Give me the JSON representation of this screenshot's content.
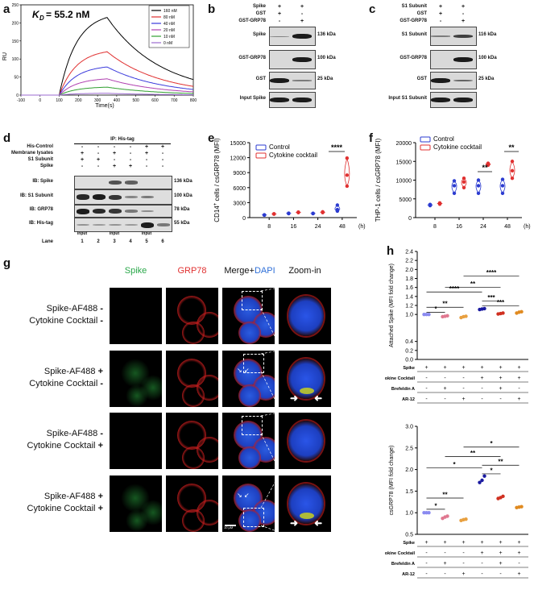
{
  "panel_labels": [
    "a",
    "b",
    "c",
    "d",
    "e",
    "f",
    "g",
    "h"
  ],
  "panel_a": {
    "kd_text": "= 55.2 nM",
    "kd_symbol": "K",
    "kd_sub": "D",
    "ylabel": "RU",
    "xlabel": "Time(s)",
    "x_ticks": [
      "-100",
      "0",
      "100",
      "200",
      "300",
      "400",
      "500",
      "600",
      "700",
      "800"
    ],
    "y_ticks": [
      "0",
      "50",
      "100",
      "150",
      "200",
      "250"
    ],
    "legend": [
      {
        "label": "160 nM",
        "color": "#000000"
      },
      {
        "label": "80 nM",
        "color": "#e03030"
      },
      {
        "label": "40 nM",
        "color": "#3a3adc"
      },
      {
        "label": "20 nM",
        "color": "#b040b0"
      },
      {
        "label": "10 nM",
        "color": "#30a030"
      },
      {
        "label": "0 nM",
        "color": "#9b6bd0"
      }
    ]
  },
  "panel_b": {
    "rows": [
      "Spike",
      "GST",
      "GST-GRP78"
    ],
    "signs": [
      [
        "+",
        "+"
      ],
      [
        "+",
        "-"
      ],
      [
        "-",
        "+"
      ]
    ],
    "blots": [
      "Spike",
      "GST-GRP78",
      "GST",
      "Input Spike"
    ],
    "sizes": [
      "136 kDa",
      "100 kDa",
      "25 kDa",
      ""
    ]
  },
  "panel_c": {
    "rows": [
      "S1 Subunit",
      "GST",
      "GST-GRP78"
    ],
    "signs": [
      [
        "+",
        "+"
      ],
      [
        "+",
        "-"
      ],
      [
        "-",
        "+"
      ]
    ],
    "blots": [
      "S1 Subunit",
      "GST-GRP78",
      "GST",
      "Input S1 Subunit"
    ],
    "sizes": [
      "116 kDa",
      "100 kDa",
      "25 kDa",
      ""
    ]
  },
  "panel_d": {
    "title": "IP: His-tag",
    "rows": [
      "His-Control",
      "Membrane lysates",
      "S1 Subunit",
      "Spike"
    ],
    "signs": [
      [
        "-",
        "-",
        "-",
        "-",
        "+",
        "+"
      ],
      [
        "+",
        "-",
        "+",
        "-",
        "+",
        "-"
      ],
      [
        "+",
        "+",
        "-",
        "-",
        "-",
        "-"
      ],
      [
        "-",
        "-",
        "+",
        "+",
        "-",
        "-"
      ]
    ],
    "input_labels": [
      "Input",
      "Input",
      "Input"
    ],
    "blots": [
      "IB: Spike",
      "IB: S1 Subunit",
      "IB: GRP78",
      "IB: His-tag"
    ],
    "sizes": [
      "136 kDa",
      "100 kDa",
      "78 kDa",
      "55 kDa"
    ],
    "lane_label": "Lane",
    "lanes": [
      "1",
      "2",
      "3",
      "4",
      "5",
      "6"
    ]
  },
  "chart_data": [
    {
      "panel": "e",
      "type": "scatter",
      "ylabel": "CD14+ cells / csGRP78 (MFI)",
      "ylabel_main": "CD14",
      "ylabel_sup": "+",
      "ylabel_rest": " cells / csGRP78 (MFI)",
      "categories": [
        "8",
        "16",
        "24",
        "48"
      ],
      "x_unit": "(h)",
      "ylim": [
        0,
        15000
      ],
      "y_ticks": [
        "0",
        "3000",
        "6000",
        "9000",
        "12000",
        "15000"
      ],
      "series": [
        {
          "name": "Control",
          "color": "#2b3bd0",
          "values": [
            [
              500,
              520,
              560
            ],
            [
              800,
              850,
              870
            ],
            [
              800,
              830,
              860
            ],
            [
              1300,
              1600,
              2500
            ]
          ]
        },
        {
          "name": "Cytokine cocktail",
          "color": "#e03030",
          "values": [
            [
              700,
              730,
              760
            ],
            [
              1000,
              1050,
              1100
            ],
            [
              1000,
              1100,
              1150
            ],
            [
              6300,
              8500,
              11900
            ]
          ]
        }
      ],
      "significance": [
        "****"
      ]
    },
    {
      "panel": "f",
      "type": "scatter",
      "ylabel": "THP-1 cells / csGRP78 (MFI)",
      "categories": [
        "8",
        "16",
        "24",
        "48"
      ],
      "x_unit": "(h)",
      "ylim": [
        0,
        20000
      ],
      "y_ticks": [
        "0",
        "5000",
        "10000",
        "15000",
        "20000"
      ],
      "series": [
        {
          "name": "Control",
          "color": "#2b3bd0",
          "values": [
            [
              3200,
              3400,
              3500
            ],
            [
              6500,
              8500,
              9800
            ],
            [
              6500,
              8500,
              10000
            ],
            [
              6500,
              8500,
              10200
            ]
          ]
        },
        {
          "name": "Cytokine cocktail",
          "color": "#e03030",
          "values": [
            [
              3600,
              3800,
              3900
            ],
            [
              8000,
              9500,
              10500
            ],
            [
              14000,
              14200,
              14500
            ],
            [
              10500,
              12500,
              15000
            ]
          ]
        }
      ],
      "significance": [
        "**",
        "**"
      ]
    },
    {
      "panel": "h-top",
      "type": "scatter",
      "ylabel": "Attached Spike (MFI fold change)",
      "ylim": [
        0,
        2.4
      ],
      "y_ticks": [
        "0.0",
        "0.2",
        "0.4",
        "1.0",
        "1.2",
        "1.4",
        "1.6",
        "1.8",
        "2.0",
        "2.2",
        "2.4"
      ],
      "groups": 6,
      "colors": [
        "#8a8af0",
        "#e07890",
        "#e8a040",
        "#1a1aa0",
        "#d03020",
        "#e08a20"
      ],
      "values": [
        [
          1.0,
          1.0,
          1.0
        ],
        [
          0.95,
          0.96,
          0.97
        ],
        [
          0.93,
          0.95,
          0.96
        ],
        [
          1.11,
          1.12,
          1.13
        ],
        [
          1.01,
          1.02,
          1.03
        ],
        [
          1.03,
          1.05,
          1.06
        ]
      ],
      "significance": [
        "*",
        "**",
        "****",
        "**",
        "****",
        "***",
        "***"
      ],
      "condition_rows": [
        "Spike",
        "Cytokine Cocktail",
        "Brefeldin A",
        "AR-12"
      ],
      "condition_signs": [
        [
          "+",
          "+",
          "+",
          "+",
          "+",
          "+"
        ],
        [
          "-",
          "-",
          "-",
          "+",
          "+",
          "+"
        ],
        [
          "-",
          "+",
          "-",
          "-",
          "+",
          "-"
        ],
        [
          "-",
          "-",
          "+",
          "-",
          "-",
          "+"
        ]
      ]
    },
    {
      "panel": "h-bottom",
      "type": "scatter",
      "ylabel": "csGRP78 (MFI fold change)",
      "ylim": [
        0.5,
        3.0
      ],
      "y_ticks": [
        "0.5",
        "1.0",
        "1.5",
        "2.0",
        "2.5",
        "3.0"
      ],
      "groups": 6,
      "colors": [
        "#8a8af0",
        "#e07890",
        "#e8a040",
        "#1a1aa0",
        "#d03020",
        "#e08a20"
      ],
      "values": [
        [
          1.0,
          1.0,
          1.0
        ],
        [
          0.87,
          0.9,
          0.92
        ],
        [
          0.82,
          0.84,
          0.85
        ],
        [
          1.7,
          1.75,
          1.85
        ],
        [
          1.33,
          1.35,
          1.38
        ],
        [
          1.12,
          1.13,
          1.14
        ]
      ],
      "significance": [
        "*",
        "**",
        "*",
        "**",
        "*",
        "*",
        "**"
      ],
      "condition_rows": [
        "Spike",
        "Cytokine Cocktail",
        "Brefeldin A",
        "AR-12"
      ],
      "condition_signs": [
        [
          "+",
          "+",
          "+",
          "+",
          "+",
          "+"
        ],
        [
          "-",
          "-",
          "-",
          "+",
          "+",
          "+"
        ],
        [
          "-",
          "+",
          "-",
          "-",
          "+",
          "-"
        ],
        [
          "-",
          "-",
          "+",
          "-",
          "-",
          "+"
        ]
      ]
    }
  ],
  "panel_g": {
    "headers": [
      {
        "text": "Spike",
        "color": "#2aa84a"
      },
      {
        "text": "GRP78",
        "color": "#e03030"
      },
      {
        "text": "Merge+",
        "color": "#111111"
      },
      {
        "text": "Zoom-in",
        "color": "#111111"
      }
    ],
    "dapi": {
      "text": "DAPI",
      "color": "#2e6fd8"
    },
    "rows": [
      {
        "line1": "Spike-AF488",
        "s1": "-",
        "line2": "Cytokine Cocktail",
        "s2": "-"
      },
      {
        "line1": "Spike-AF488",
        "s1": "+",
        "line2": "Cytokine Cocktail",
        "s2": "-"
      },
      {
        "line1": "Spike-AF488",
        "s1": "-",
        "line2": "Cytokine Cocktail",
        "s2": "+"
      },
      {
        "line1": "Spike-AF488",
        "s1": "+",
        "line2": "Cytokine Cocktail",
        "s2": "+"
      }
    ],
    "scale_bar": "10 μM"
  }
}
